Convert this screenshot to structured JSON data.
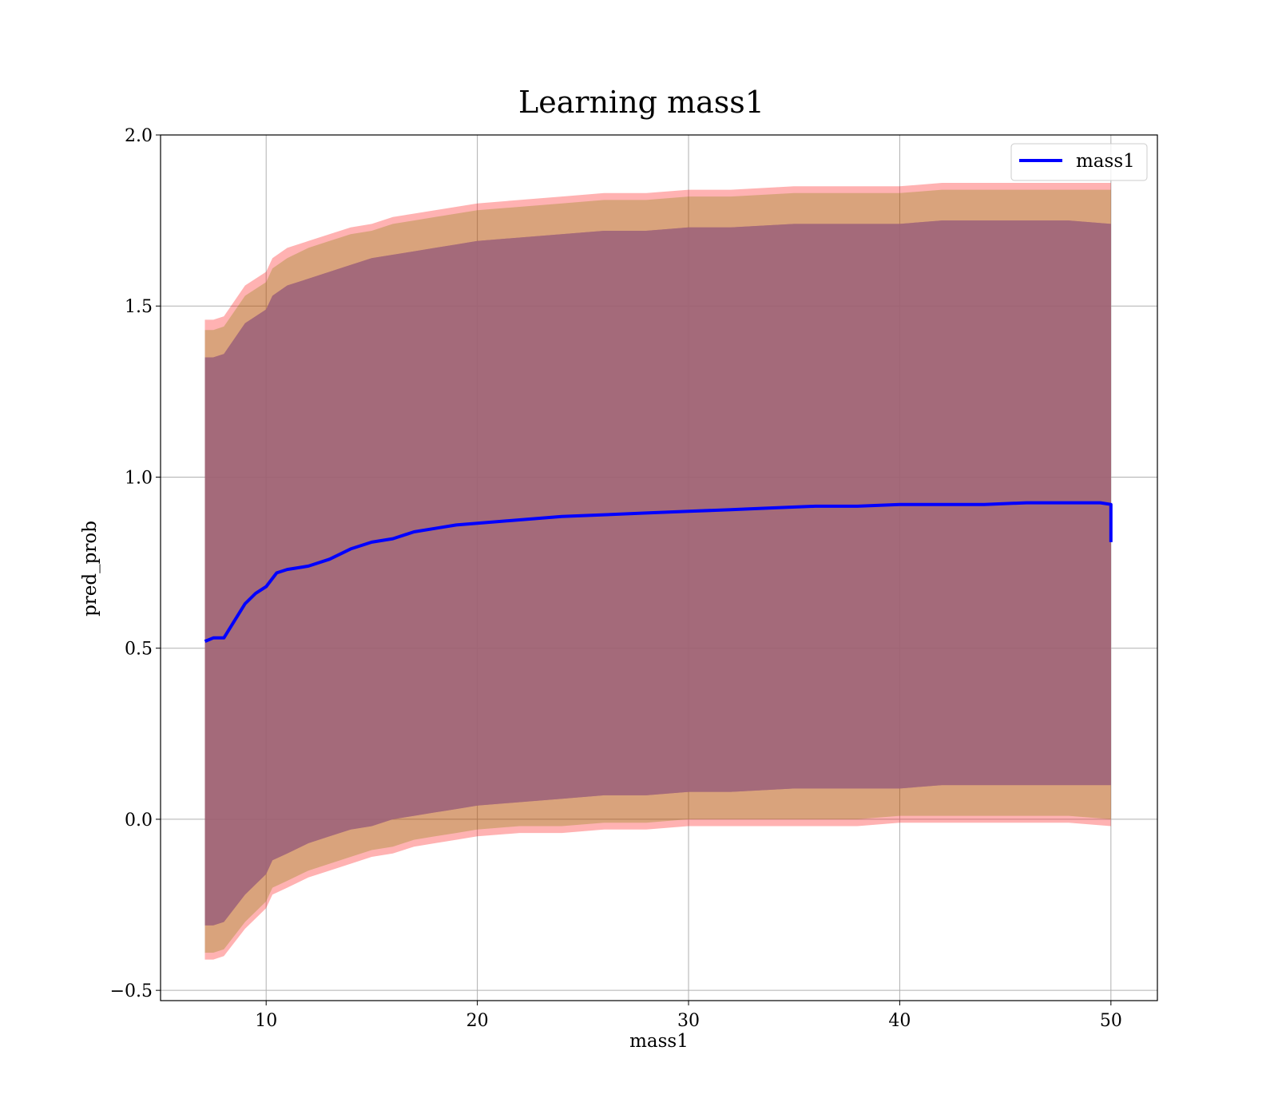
{
  "chart_data": {
    "type": "line",
    "title": "Learning mass1",
    "xlabel": "mass1",
    "ylabel": "pred_prob",
    "xlim": [
      5,
      52.2
    ],
    "ylim": [
      -0.53,
      2.0
    ],
    "xticks": [
      10,
      20,
      30,
      40,
      50
    ],
    "yticks": [
      -0.5,
      0.0,
      0.5,
      1.0,
      1.5,
      2.0
    ],
    "xtick_labels": [
      "10",
      "20",
      "30",
      "40",
      "50"
    ],
    "ytick_labels": [
      "−0.5",
      "0.0",
      "0.5",
      "1.0",
      "1.5",
      "2.0"
    ],
    "grid": true,
    "legend": {
      "position": "top-right",
      "entries": [
        "mass1"
      ]
    },
    "colors": {
      "line": "#0000ff",
      "band_outer": "#ff0000",
      "band_mid": "#808000",
      "band_inner": "#800080",
      "background": "#ffffff"
    },
    "series": [
      {
        "name": "mass1",
        "x": [
          7.1,
          7.5,
          8.0,
          8.5,
          9.0,
          9.5,
          10.0,
          10.5,
          11,
          12,
          13,
          14,
          15,
          16,
          17,
          18,
          19,
          20,
          22,
          24,
          26,
          28,
          30,
          32,
          34,
          36,
          38,
          40,
          42,
          44,
          46,
          48,
          49.5,
          50.0,
          50.0
        ],
        "y": [
          0.52,
          0.53,
          0.53,
          0.58,
          0.63,
          0.66,
          0.68,
          0.72,
          0.73,
          0.74,
          0.76,
          0.79,
          0.81,
          0.82,
          0.84,
          0.85,
          0.86,
          0.865,
          0.875,
          0.885,
          0.89,
          0.895,
          0.9,
          0.905,
          0.91,
          0.915,
          0.915,
          0.92,
          0.92,
          0.92,
          0.925,
          0.925,
          0.925,
          0.92,
          0.81
        ]
      }
    ],
    "bands": [
      {
        "name": "outer",
        "x": [
          7.1,
          7.5,
          8,
          9,
          10,
          10.3,
          11,
          12,
          13,
          14,
          15,
          16,
          17,
          18,
          19,
          20,
          22,
          24,
          26,
          28,
          30,
          32,
          35,
          38,
          40,
          42,
          44,
          46,
          48,
          50
        ],
        "upper": [
          1.46,
          1.46,
          1.47,
          1.56,
          1.6,
          1.64,
          1.67,
          1.69,
          1.71,
          1.73,
          1.74,
          1.76,
          1.77,
          1.78,
          1.79,
          1.8,
          1.81,
          1.82,
          1.83,
          1.83,
          1.84,
          1.84,
          1.85,
          1.85,
          1.85,
          1.86,
          1.86,
          1.86,
          1.86,
          1.86
        ],
        "lower": [
          -0.41,
          -0.41,
          -0.4,
          -0.32,
          -0.26,
          -0.22,
          -0.2,
          -0.17,
          -0.15,
          -0.13,
          -0.11,
          -0.1,
          -0.08,
          -0.07,
          -0.06,
          -0.05,
          -0.04,
          -0.04,
          -0.03,
          -0.03,
          -0.02,
          -0.02,
          -0.02,
          -0.02,
          -0.01,
          -0.01,
          -0.01,
          -0.01,
          -0.01,
          -0.02
        ]
      },
      {
        "name": "middle",
        "x": [
          7.1,
          7.5,
          8,
          9,
          10,
          10.3,
          11,
          12,
          13,
          14,
          15,
          16,
          17,
          18,
          19,
          20,
          22,
          24,
          26,
          28,
          30,
          32,
          35,
          38,
          40,
          42,
          44,
          46,
          48,
          50
        ],
        "upper": [
          1.43,
          1.43,
          1.44,
          1.53,
          1.57,
          1.61,
          1.64,
          1.67,
          1.69,
          1.71,
          1.72,
          1.74,
          1.75,
          1.76,
          1.77,
          1.78,
          1.79,
          1.8,
          1.81,
          1.81,
          1.82,
          1.82,
          1.83,
          1.83,
          1.83,
          1.84,
          1.84,
          1.84,
          1.84,
          1.84
        ],
        "lower": [
          -0.39,
          -0.39,
          -0.38,
          -0.3,
          -0.24,
          -0.2,
          -0.18,
          -0.15,
          -0.13,
          -0.11,
          -0.09,
          -0.08,
          -0.06,
          -0.05,
          -0.04,
          -0.03,
          -0.02,
          -0.02,
          -0.01,
          -0.01,
          0.0,
          0.0,
          0.0,
          0.0,
          0.01,
          0.01,
          0.01,
          0.01,
          0.01,
          0.0
        ]
      },
      {
        "name": "inner",
        "x": [
          7.1,
          7.5,
          8,
          9,
          10,
          10.3,
          11,
          12,
          13,
          14,
          15,
          16,
          17,
          18,
          19,
          20,
          22,
          24,
          26,
          28,
          30,
          32,
          35,
          38,
          40,
          42,
          44,
          46,
          48,
          50
        ],
        "upper": [
          1.35,
          1.35,
          1.36,
          1.45,
          1.49,
          1.53,
          1.56,
          1.58,
          1.6,
          1.62,
          1.64,
          1.65,
          1.66,
          1.67,
          1.68,
          1.69,
          1.7,
          1.71,
          1.72,
          1.72,
          1.73,
          1.73,
          1.74,
          1.74,
          1.74,
          1.75,
          1.75,
          1.75,
          1.75,
          1.74
        ],
        "lower": [
          -0.31,
          -0.31,
          -0.3,
          -0.22,
          -0.16,
          -0.12,
          -0.1,
          -0.07,
          -0.05,
          -0.03,
          -0.02,
          0.0,
          0.01,
          0.02,
          0.03,
          0.04,
          0.05,
          0.06,
          0.07,
          0.07,
          0.08,
          0.08,
          0.09,
          0.09,
          0.09,
          0.1,
          0.1,
          0.1,
          0.1,
          0.1
        ]
      }
    ]
  }
}
